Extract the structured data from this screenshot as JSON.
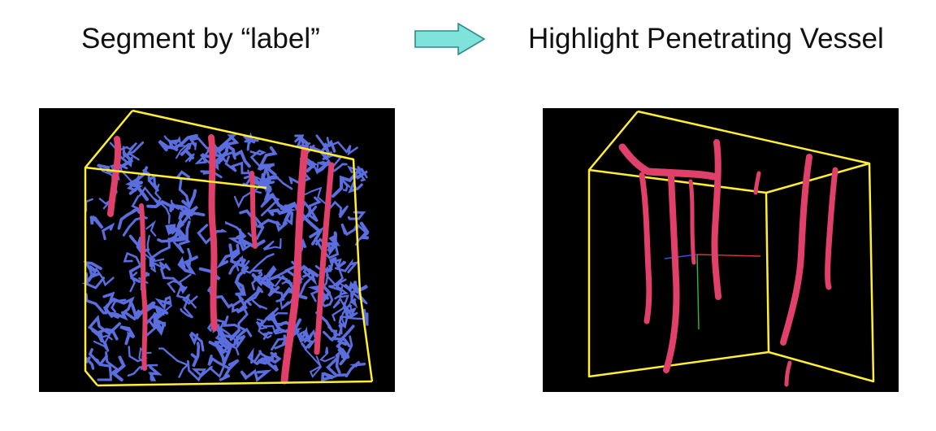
{
  "steps": {
    "left_caption": "Segment by “label”",
    "right_caption": "Highlight Penetrating Vessel"
  },
  "arrow": {
    "icon": "right-arrow-icon",
    "fill": "#7fe3dc",
    "stroke": "#2a8c86"
  },
  "panels": [
    {
      "name": "segmented-volume",
      "box_color": "#ffee33",
      "vessel_color": "#e0406a",
      "capillary_color": "#5a6ee0"
    },
    {
      "name": "penetrating-vessels",
      "box_color": "#ffee33",
      "vessel_color": "#e0406a"
    }
  ]
}
